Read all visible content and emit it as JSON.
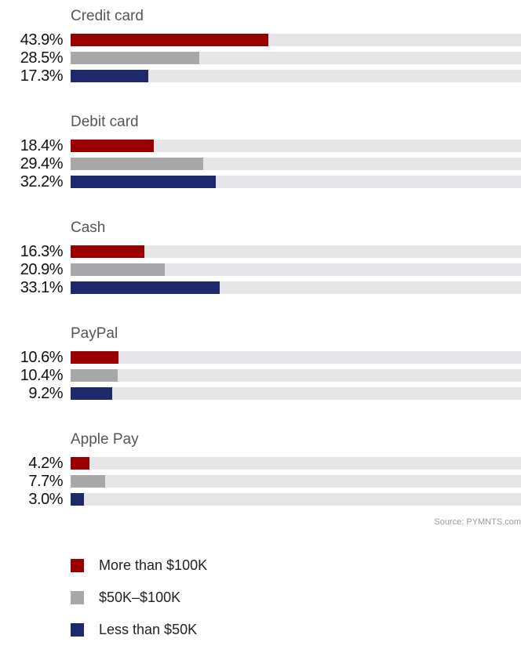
{
  "chart_data": {
    "type": "bar",
    "orientation": "horizontal",
    "categories": [
      "Credit card",
      "Debit card",
      "Cash",
      "PayPal",
      "Apple Pay"
    ],
    "series": [
      {
        "name": "More than $100K",
        "color": "#9b0000",
        "values": [
          43.9,
          18.4,
          16.3,
          10.6,
          4.2
        ],
        "labels": [
          "43.9%",
          "18.4%",
          "16.3%",
          "10.6%",
          "4.2%"
        ]
      },
      {
        "name": "$50K–$100K",
        "color": "#a8a8aa",
        "values": [
          28.5,
          29.4,
          20.9,
          10.4,
          7.7
        ],
        "labels": [
          "28.5%",
          "29.4%",
          "20.9%",
          "10.4%",
          "7.7%"
        ]
      },
      {
        "name": "Less than $50K",
        "color": "#1c2a6b",
        "values": [
          17.3,
          32.2,
          33.1,
          9.2,
          3.0
        ],
        "labels": [
          "17.3%",
          "32.2%",
          "33.1%",
          "9.2%",
          "3.0%"
        ]
      }
    ],
    "xlim": [
      0,
      100
    ],
    "track_color": "#e6e6e8",
    "legend_position": "bottom-left",
    "grid": false
  },
  "source": "Source: PYMNTS.com"
}
